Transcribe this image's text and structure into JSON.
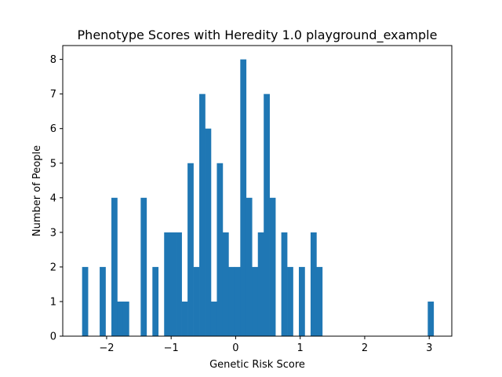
{
  "chart_data": {
    "type": "bar",
    "title": "Phenotype Scores with Heredity 1.0 playground_example",
    "xlabel": "Genetic Risk Score",
    "ylabel": "Number of People",
    "xlim": [
      -2.68,
      3.35
    ],
    "ylim": [
      0,
      8.4
    ],
    "xticks": [
      -2,
      -1,
      0,
      1,
      2,
      3
    ],
    "xtick_labels": [
      "−2",
      "−1",
      "0",
      "1",
      "2",
      "3"
    ],
    "yticks": [
      0,
      1,
      2,
      3,
      4,
      5,
      6,
      7,
      8
    ],
    "ytick_labels": [
      "0",
      "1",
      "2",
      "3",
      "4",
      "5",
      "6",
      "7",
      "8"
    ],
    "grid": false,
    "legend": "none",
    "bar_color": "#1f77b4",
    "bin_start": -2.38,
    "bin_width": 0.0908,
    "counts": [
      2,
      0,
      0,
      2,
      0,
      4,
      1,
      1,
      0,
      0,
      4,
      0,
      2,
      0,
      3,
      3,
      3,
      1,
      5,
      2,
      7,
      6,
      1,
      5,
      3,
      2,
      2,
      8,
      4,
      2,
      3,
      7,
      4,
      0,
      3,
      2,
      0,
      2,
      0,
      3,
      2,
      0,
      0,
      0,
      0,
      0,
      0,
      0,
      0,
      0,
      0,
      0,
      0,
      0,
      0,
      0,
      0,
      0,
      0,
      1
    ]
  }
}
